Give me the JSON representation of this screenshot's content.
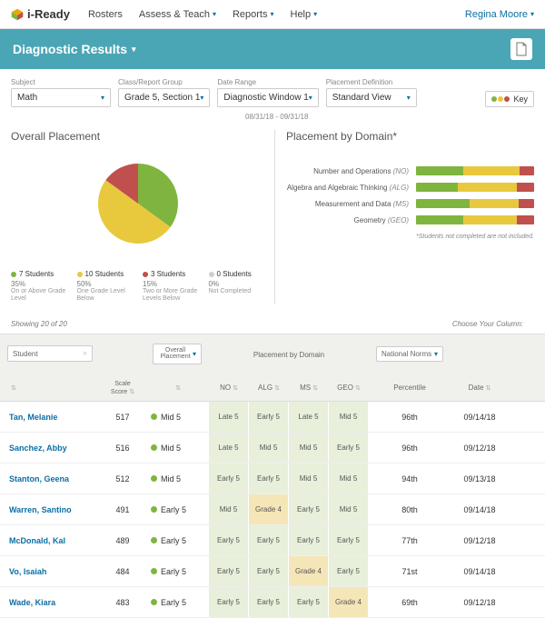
{
  "nav": {
    "brand": "i-Ready",
    "items": [
      "Rosters",
      "Assess & Teach",
      "Reports",
      "Help"
    ],
    "user": "Regina Moore"
  },
  "banner": {
    "title": "Diagnostic Results"
  },
  "filters": {
    "subject": {
      "label": "Subject",
      "value": "Math"
    },
    "group": {
      "label": "Class/Report Group",
      "value": "Grade 5, Section 1"
    },
    "date": {
      "label": "Date Range",
      "value": "Diagnostic Window 1",
      "sub": "08/31/18 - 09/31/18"
    },
    "placement": {
      "label": "Placement Definition",
      "value": "Standard View"
    },
    "key": "Key"
  },
  "overall": {
    "title": "Overall Placement",
    "pie": {
      "green": 35,
      "yellow": 50,
      "red": 15,
      "gray": 0
    },
    "colors": {
      "green": "#7fb53f",
      "yellow": "#e8c93d",
      "red": "#c0504d",
      "gray": "#cfcfcf"
    },
    "legend": [
      {
        "count": "7 Students",
        "pct": "35%",
        "desc": "On or Above Grade Level",
        "color": "#7fb53f"
      },
      {
        "count": "10 Students",
        "pct": "50%",
        "desc": "One Grade Level Below",
        "color": "#e8c93d"
      },
      {
        "count": "3 Students",
        "pct": "15%",
        "desc": "Two or More Grade Levels Below",
        "color": "#c0504d"
      },
      {
        "count": "0 Students",
        "pct": "0%",
        "desc": "Not Completed",
        "color": "#cfcfcf"
      }
    ]
  },
  "domains": {
    "title": "Placement by Domain*",
    "rows": [
      {
        "label": "Number and Operations",
        "code": "(NO)",
        "g": 40,
        "y": 48,
        "r": 12
      },
      {
        "label": "Algebra and Algebraic Thinking",
        "code": "(ALG)",
        "g": 35,
        "y": 50,
        "r": 15
      },
      {
        "label": "Measurement and Data",
        "code": "(MS)",
        "g": 45,
        "y": 42,
        "r": 13
      },
      {
        "label": "Geometry",
        "code": "(GEO)",
        "g": 40,
        "y": 45,
        "r": 15
      }
    ],
    "footnote": "*Students not completed are not included."
  },
  "table": {
    "showing": "Showing 20 of 20",
    "choose": "Choose Your Column:",
    "headers": {
      "student": "Student",
      "scale": "Scale Score",
      "overall": "Overall Placement",
      "pbd": "Placement by Domain",
      "no": "NO",
      "alg": "ALG",
      "ms": "MS",
      "geo": "GEO",
      "norms": "National Norms",
      "pct": "Percentile",
      "date": "Date"
    },
    "rows": [
      {
        "name": "Tan, Melanie",
        "score": "517",
        "overall": "Mid 5",
        "oc": "g",
        "d": [
          [
            "Late 5",
            "g"
          ],
          [
            "Early 5",
            "g"
          ],
          [
            "Late 5",
            "g"
          ],
          [
            "Mid 5",
            "g"
          ]
        ],
        "pct": "96th",
        "date": "09/14/18"
      },
      {
        "name": "Sanchez, Abby",
        "score": "516",
        "overall": "Mid 5",
        "oc": "g",
        "d": [
          [
            "Late 5",
            "g"
          ],
          [
            "Mid 5",
            "g"
          ],
          [
            "Mid 5",
            "g"
          ],
          [
            "Early 5",
            "g"
          ]
        ],
        "pct": "96th",
        "date": "09/12/18"
      },
      {
        "name": "Stanton, Geena",
        "score": "512",
        "overall": "Mid 5",
        "oc": "g",
        "d": [
          [
            "Early 5",
            "g"
          ],
          [
            "Early 5",
            "g"
          ],
          [
            "Mid 5",
            "g"
          ],
          [
            "Mid 5",
            "g"
          ]
        ],
        "pct": "94th",
        "date": "09/13/18"
      },
      {
        "name": "Warren, Santino",
        "score": "491",
        "overall": "Early 5",
        "oc": "g",
        "d": [
          [
            "Mid 5",
            "g"
          ],
          [
            "Grade 4",
            "y"
          ],
          [
            "Early 5",
            "g"
          ],
          [
            "Mid 5",
            "g"
          ]
        ],
        "pct": "80th",
        "date": "09/14/18"
      },
      {
        "name": "McDonald, Kal",
        "score": "489",
        "overall": "Early 5",
        "oc": "g",
        "d": [
          [
            "Early 5",
            "g"
          ],
          [
            "Early 5",
            "g"
          ],
          [
            "Early 5",
            "g"
          ],
          [
            "Early 5",
            "g"
          ]
        ],
        "pct": "77th",
        "date": "09/12/18"
      },
      {
        "name": "Vo, Isaiah",
        "score": "484",
        "overall": "Early 5",
        "oc": "g",
        "d": [
          [
            "Early 5",
            "g"
          ],
          [
            "Early 5",
            "g"
          ],
          [
            "Grade 4",
            "y"
          ],
          [
            "Early 5",
            "g"
          ]
        ],
        "pct": "71st",
        "date": "09/14/18"
      },
      {
        "name": "Wade, Kiara",
        "score": "483",
        "overall": "Early 5",
        "oc": "g",
        "d": [
          [
            "Early 5",
            "g"
          ],
          [
            "Early 5",
            "g"
          ],
          [
            "Early 5",
            "g"
          ],
          [
            "Grade 4",
            "y"
          ]
        ],
        "pct": "69th",
        "date": "09/12/18"
      }
    ]
  }
}
